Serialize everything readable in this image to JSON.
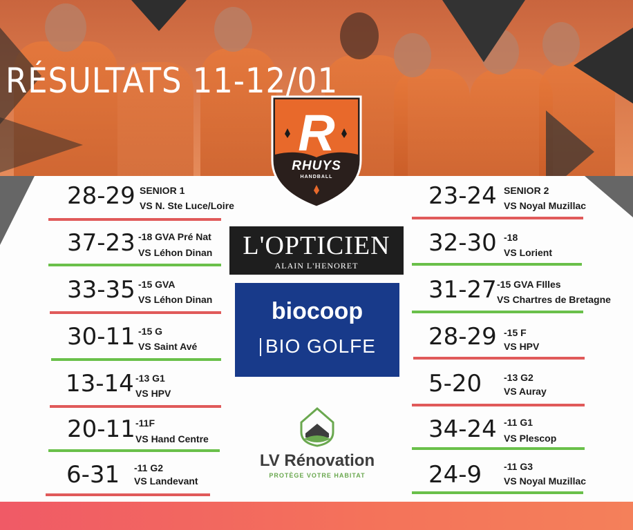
{
  "title": "RÉSULTATS 11-12/01",
  "club": {
    "name": "RHUYS",
    "sub": "HANDBALL",
    "letter": "R"
  },
  "colors": {
    "win": "#6ac04a",
    "loss": "#e05a5a",
    "footer": "#f26a5e"
  },
  "results_left": [
    {
      "score": "28-29",
      "category": "SENIOR 1",
      "opponent": "VS N. Ste Luce/Loire",
      "outcome": "loss"
    },
    {
      "score": "37-23",
      "category": "-18 GVA Pré Nat",
      "opponent": "VS Léhon Dinan",
      "outcome": "win"
    },
    {
      "score": "33-35",
      "category": "-15 GVA",
      "opponent": "VS Léhon Dinan",
      "outcome": "loss"
    },
    {
      "score": "30-11",
      "category": "-15 G",
      "opponent": "VS Saint Avé",
      "outcome": "win"
    },
    {
      "score": "13-14",
      "category": "-13 G1",
      "opponent": "VS HPV",
      "outcome": "loss"
    },
    {
      "score": "20-11",
      "category": "-11F",
      "opponent": "VS Hand Centre",
      "outcome": "win"
    },
    {
      "score": "6-31",
      "category": "-11 G2",
      "opponent": "VS Landevant",
      "outcome": "loss"
    }
  ],
  "results_right": [
    {
      "score": "23-24",
      "category": "SENIOR 2",
      "opponent": "VS Noyal Muzillac",
      "outcome": "loss"
    },
    {
      "score": "32-30",
      "category": "-18",
      "opponent": "VS Lorient",
      "outcome": "win"
    },
    {
      "score": "31-27",
      "category": "-15 GVA FIlles",
      "opponent": "VS Chartres de Bretagne",
      "outcome": "win"
    },
    {
      "score": "28-29",
      "category": "-15 F",
      "opponent": "VS HPV",
      "outcome": "loss"
    },
    {
      "score": "5-20",
      "category": "-13 G2",
      "opponent": "VS Auray",
      "outcome": "loss"
    },
    {
      "score": "34-24",
      "category": "-11 G1",
      "opponent": "VS Plescop",
      "outcome": "win"
    },
    {
      "score": "24-9",
      "category": "-11 G3",
      "opponent": "VS Noyal Muzillac",
      "outcome": "win"
    }
  ],
  "sponsors": {
    "opticien": {
      "name": "L'OPTICIEN",
      "sub": "ALAIN L'HENORET"
    },
    "biocoop": {
      "name": "biocoop",
      "sub": "BIO GOLFE"
    },
    "lv": {
      "name": "LV Rénovation",
      "sub": "PROTÈGE VOTRE HABITAT"
    }
  }
}
